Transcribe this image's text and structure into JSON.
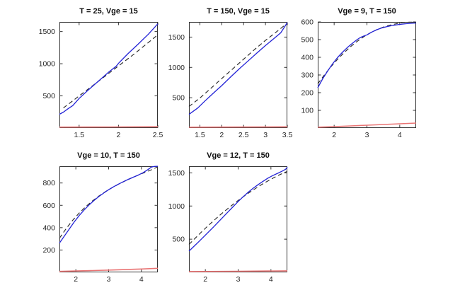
{
  "figure": {
    "background": "#ffffff",
    "axis_color": "#333333",
    "title_color": "#111111"
  },
  "chart_data": [
    {
      "type": "line",
      "title": "T = 25, Vge = 15",
      "xlim": [
        1.25,
        2.5
      ],
      "ylim": [
        0,
        1650
      ],
      "xticks": [
        1.5,
        2,
        2.5
      ],
      "yticks": [
        500,
        1000,
        1500
      ],
      "grid": false,
      "legend": null,
      "series": [
        {
          "name": "black-dashed",
          "style": "dashed",
          "color": "#2b2b2b",
          "width": 1.15,
          "points": [
            [
              1.3,
              312
            ],
            [
              1.45,
              452
            ],
            [
              1.6,
              592
            ],
            [
              1.75,
              732
            ],
            [
              1.9,
              872
            ],
            [
              2.05,
              1012
            ],
            [
              2.2,
              1152
            ],
            [
              2.35,
              1300
            ],
            [
              2.5,
              1450
            ]
          ]
        },
        {
          "name": "blue-solid",
          "style": "solid",
          "color": "#2323d6",
          "width": 1.3,
          "points": [
            [
              1.25,
              215
            ],
            [
              1.3,
              248
            ],
            [
              1.36,
              300
            ],
            [
              1.42,
              350
            ],
            [
              1.5,
              460
            ],
            [
              1.62,
              595
            ],
            [
              1.75,
              735
            ],
            [
              1.88,
              875
            ],
            [
              1.97,
              960
            ],
            [
              2.0,
              1005
            ],
            [
              2.12,
              1155
            ],
            [
              2.25,
              1305
            ],
            [
              2.38,
              1460
            ],
            [
              2.5,
              1620
            ]
          ]
        },
        {
          "name": "red-solid",
          "style": "solid",
          "color": "#ea7575",
          "width": 1.6,
          "points": [
            [
              1.25,
              14
            ],
            [
              1.9,
              16
            ],
            [
              2.5,
              20
            ]
          ]
        }
      ]
    },
    {
      "type": "line",
      "title": "T = 150, Vge = 15",
      "xlim": [
        1.25,
        3.5
      ],
      "ylim": [
        0,
        1750
      ],
      "xticks": [
        1.5,
        2,
        2.5,
        3,
        3.5
      ],
      "yticks": [
        500,
        1000,
        1500
      ],
      "grid": false,
      "legend": null,
      "series": [
        {
          "name": "black-dashed",
          "style": "dashed",
          "color": "#2b2b2b",
          "width": 1.15,
          "points": [
            [
              1.25,
              355
            ],
            [
              1.5,
              495
            ],
            [
              1.75,
              655
            ],
            [
              2.0,
              815
            ],
            [
              2.25,
              975
            ],
            [
              2.5,
              1135
            ],
            [
              2.75,
              1295
            ],
            [
              3.0,
              1445
            ],
            [
              3.25,
              1585
            ],
            [
              3.5,
              1730
            ]
          ]
        },
        {
          "name": "blue-solid",
          "style": "solid",
          "color": "#2323d6",
          "width": 1.3,
          "points": [
            [
              1.25,
              225
            ],
            [
              1.45,
              330
            ],
            [
              1.6,
              435
            ],
            [
              1.8,
              570
            ],
            [
              2.0,
              700
            ],
            [
              2.2,
              840
            ],
            [
              2.4,
              975
            ],
            [
              2.6,
              1105
            ],
            [
              2.8,
              1235
            ],
            [
              3.0,
              1360
            ],
            [
              3.2,
              1480
            ],
            [
              3.35,
              1570
            ],
            [
              3.5,
              1740
            ]
          ]
        },
        {
          "name": "red-solid",
          "style": "solid",
          "color": "#ea7575",
          "width": 1.6,
          "points": [
            [
              1.25,
              14
            ],
            [
              2.4,
              16
            ],
            [
              3.5,
              20
            ]
          ]
        }
      ]
    },
    {
      "type": "line",
      "title": "Vge = 9, T = 150",
      "xlim": [
        1.5,
        4.5
      ],
      "ylim": [
        0,
        600
      ],
      "xticks": [
        2,
        3,
        4
      ],
      "yticks": [
        100,
        200,
        300,
        400,
        500,
        600
      ],
      "grid": false,
      "legend": null,
      "series": [
        {
          "name": "black-dashed",
          "style": "dashed",
          "color": "#2b2b2b",
          "width": 1.15,
          "points": [
            [
              1.5,
              250
            ],
            [
              1.7,
              300
            ],
            [
              1.9,
              346
            ],
            [
              2.1,
              388
            ],
            [
              2.3,
              426
            ],
            [
              2.5,
              460
            ],
            [
              2.7,
              490
            ],
            [
              2.9,
              516
            ],
            [
              3.1,
              538
            ],
            [
              3.3,
              556
            ],
            [
              3.5,
              571
            ],
            [
              3.7,
              582
            ],
            [
              3.9,
              590
            ],
            [
              4.1,
              597
            ],
            [
              4.3,
              599
            ],
            [
              4.5,
              599
            ]
          ]
        },
        {
          "name": "blue-solid",
          "style": "solid",
          "color": "#2323d6",
          "width": 1.3,
          "points": [
            [
              1.5,
              228
            ],
            [
              1.65,
              278
            ],
            [
              1.8,
              322
            ],
            [
              1.95,
              362
            ],
            [
              2.1,
              398
            ],
            [
              2.25,
              428
            ],
            [
              2.4,
              455
            ],
            [
              2.55,
              478
            ],
            [
              2.7,
              500
            ],
            [
              2.8,
              512
            ],
            [
              2.9,
              520
            ],
            [
              3.0,
              527
            ],
            [
              3.15,
              543
            ],
            [
              3.3,
              556
            ],
            [
              3.45,
              566
            ],
            [
              3.6,
              573
            ],
            [
              3.8,
              581
            ],
            [
              4.0,
              586
            ],
            [
              4.2,
              590
            ],
            [
              4.35,
              592
            ],
            [
              4.5,
              594
            ]
          ]
        },
        {
          "name": "red-solid",
          "style": "solid",
          "color": "#ea7575",
          "width": 1.6,
          "points": [
            [
              1.5,
              5
            ],
            [
              2.0,
              8
            ],
            [
              2.5,
              12
            ],
            [
              3.0,
              16
            ],
            [
              3.5,
              20
            ],
            [
              4.0,
              24
            ],
            [
              4.5,
              28
            ]
          ]
        }
      ]
    },
    {
      "type": "line",
      "title": "Vge = 10, T = 150",
      "xlim": [
        1.5,
        4.5
      ],
      "ylim": [
        0,
        950
      ],
      "xticks": [
        2,
        3,
        4
      ],
      "yticks": [
        200,
        400,
        600,
        800
      ],
      "grid": false,
      "legend": null,
      "series": [
        {
          "name": "black-dashed",
          "style": "dashed",
          "color": "#2b2b2b",
          "width": 1.15,
          "points": [
            [
              1.5,
              305
            ],
            [
              1.7,
              390
            ],
            [
              1.9,
              465
            ],
            [
              2.1,
              530
            ],
            [
              2.3,
              588
            ],
            [
              2.5,
              638
            ],
            [
              2.7,
              683
            ],
            [
              2.9,
              722
            ],
            [
              3.1,
              757
            ],
            [
              3.3,
              789
            ],
            [
              3.5,
              818
            ],
            [
              3.7,
              845
            ],
            [
              3.9,
              870
            ],
            [
              4.1,
              894
            ],
            [
              4.3,
              918
            ],
            [
              4.5,
              945
            ]
          ]
        },
        {
          "name": "blue-solid",
          "style": "solid",
          "color": "#2323d6",
          "width": 1.3,
          "points": [
            [
              1.5,
              262
            ],
            [
              1.65,
              325
            ],
            [
              1.8,
              388
            ],
            [
              1.95,
              450
            ],
            [
              2.1,
              508
            ],
            [
              2.25,
              558
            ],
            [
              2.4,
              602
            ],
            [
              2.55,
              642
            ],
            [
              2.7,
              678
            ],
            [
              2.85,
              710
            ],
            [
              3.0,
              740
            ],
            [
              3.15,
              766
            ],
            [
              3.3,
              790
            ],
            [
              3.45,
              812
            ],
            [
              3.6,
              833
            ],
            [
              3.75,
              852
            ],
            [
              3.9,
              870
            ],
            [
              4.05,
              892
            ],
            [
              4.2,
              920
            ],
            [
              4.3,
              942
            ],
            [
              4.4,
              948
            ],
            [
              4.5,
              950
            ]
          ]
        },
        {
          "name": "red-solid",
          "style": "solid",
          "color": "#ea7575",
          "width": 1.6,
          "points": [
            [
              1.5,
              8
            ],
            [
              2.0,
              12
            ],
            [
              2.5,
              16
            ],
            [
              3.0,
              20
            ],
            [
              3.5,
              25
            ],
            [
              4.0,
              30
            ],
            [
              4.5,
              36
            ]
          ]
        }
      ]
    },
    {
      "type": "line",
      "title": "Vge = 12, T = 150",
      "xlim": [
        1.5,
        4.5
      ],
      "ylim": [
        0,
        1600
      ],
      "xticks": [
        2,
        3,
        4
      ],
      "yticks": [
        500,
        1000,
        1500
      ],
      "grid": false,
      "legend": null,
      "series": [
        {
          "name": "black-dashed",
          "style": "dashed",
          "color": "#2b2b2b",
          "width": 1.15,
          "points": [
            [
              1.5,
              420
            ],
            [
              1.7,
              520
            ],
            [
              1.9,
              617
            ],
            [
              2.1,
              710
            ],
            [
              2.3,
              800
            ],
            [
              2.5,
              886
            ],
            [
              2.7,
              968
            ],
            [
              2.9,
              1046
            ],
            [
              3.1,
              1120
            ],
            [
              3.3,
              1190
            ],
            [
              3.5,
              1256
            ],
            [
              3.7,
              1318
            ],
            [
              3.9,
              1376
            ],
            [
              4.1,
              1430
            ],
            [
              4.3,
              1480
            ],
            [
              4.5,
              1522
            ]
          ]
        },
        {
          "name": "blue-solid",
          "style": "solid",
          "color": "#2323d6",
          "width": 1.3,
          "points": [
            [
              1.5,
              320
            ],
            [
              1.65,
              390
            ],
            [
              1.8,
              462
            ],
            [
              1.95,
              535
            ],
            [
              2.1,
              610
            ],
            [
              2.25,
              685
            ],
            [
              2.4,
              762
            ],
            [
              2.55,
              838
            ],
            [
              2.7,
              915
            ],
            [
              2.85,
              992
            ],
            [
              3.0,
              1068
            ],
            [
              3.15,
              1138
            ],
            [
              3.3,
              1205
            ],
            [
              3.45,
              1265
            ],
            [
              3.6,
              1320
            ],
            [
              3.75,
              1370
            ],
            [
              3.9,
              1418
            ],
            [
              4.05,
              1458
            ],
            [
              4.2,
              1492
            ],
            [
              4.35,
              1528
            ],
            [
              4.45,
              1555
            ],
            [
              4.5,
              1588
            ]
          ]
        },
        {
          "name": "red-solid",
          "style": "solid",
          "color": "#ea7575",
          "width": 1.6,
          "points": [
            [
              1.5,
              12
            ],
            [
              3.0,
              16
            ],
            [
              4.5,
              22
            ]
          ]
        }
      ]
    }
  ]
}
